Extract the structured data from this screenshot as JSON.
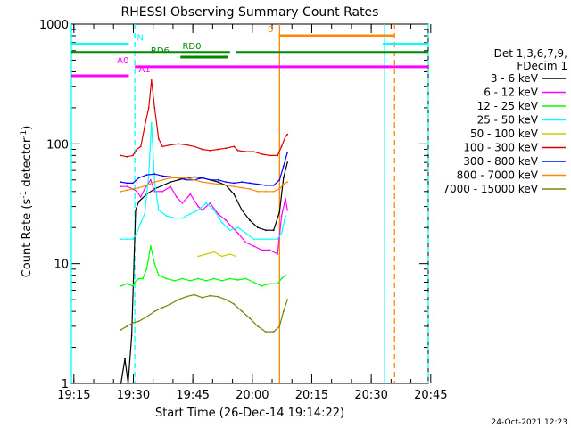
{
  "chart_data": {
    "type": "line",
    "title": "RHESSI Observing Summary Count Rates",
    "xlabel": "Start Time (26-Dec-14 19:14:22)",
    "ylabel_main": "Count Rate (s",
    "ylabel_exp1": "-1",
    "ylabel_mid": " detector",
    "ylabel_exp2": "-1",
    "ylabel_end": ")",
    "y_scale": "log",
    "ylim": [
      1,
      1000
    ],
    "xlim_min": [
      0,
      90
    ],
    "x_ticks": [
      {
        "t": 0.63,
        "label": "19:15"
      },
      {
        "t": 15.63,
        "label": "19:30"
      },
      {
        "t": 30.63,
        "label": "19:45"
      },
      {
        "t": 45.63,
        "label": "20:00"
      },
      {
        "t": 60.63,
        "label": "20:15"
      },
      {
        "t": 75.63,
        "label": "20:30"
      },
      {
        "t": 90.63,
        "label": "20:45"
      }
    ],
    "y_ticks": [
      {
        "v": 1,
        "label": "1"
      },
      {
        "v": 10,
        "label": "10"
      },
      {
        "v": 100,
        "label": "100"
      },
      {
        "v": 1000,
        "label": "1000"
      }
    ],
    "legend": {
      "placement": "right",
      "header1": "Det 1,3,6,7,9,",
      "header2": "FDecim 1",
      "entries": [
        {
          "label": "3 - 6 keV",
          "color": "#000000"
        },
        {
          "label": "6 - 12 keV",
          "color": "#ff00ff"
        },
        {
          "label": "12 - 25 keV",
          "color": "#00ff00"
        },
        {
          "label": "25 - 50 keV",
          "color": "#00ffff"
        },
        {
          "label": "50 - 100 keV",
          "color": "#cccc00"
        },
        {
          "label": "100 - 300 keV",
          "color": "#dd0000"
        },
        {
          "label": "300 - 800 keV",
          "color": "#0000ff"
        },
        {
          "label": "800 - 7000 keV",
          "color": "#ff8800"
        },
        {
          "label": "7000 - 15000 keV",
          "color": "#808000"
        }
      ]
    },
    "flag_bars": [
      {
        "label": "N",
        "color": "#00ffff",
        "value": 680,
        "segments": [
          [
            -1,
            14.5
          ],
          [
            78.5,
            91
          ]
        ],
        "label_t": 16.5
      },
      {
        "label": "S",
        "color": "#ff8800",
        "value": 800,
        "segments": [
          [
            52.5,
            81.5
          ]
        ],
        "label_t": 49.5
      },
      {
        "label": "RD0",
        "color": "#008800",
        "value": 580,
        "segments": [
          [
            -1,
            40
          ],
          [
            41.5,
            91
          ]
        ],
        "label_t": 28
      },
      {
        "label": "RD6",
        "color": "#008800",
        "value": 530,
        "segments": [
          [
            27.5,
            39.5
          ]
        ],
        "label_t": 20
      },
      {
        "label": "A0",
        "color": "#ff00ff",
        "value": 440,
        "segments": [
          [
            16,
            91
          ]
        ],
        "label_t": 11.5
      },
      {
        "label": "A1",
        "color": "#ff00ff",
        "value": 370,
        "segments": [
          [
            -1,
            14.5
          ]
        ],
        "label_t": 17
      }
    ],
    "vertical_markers": [
      {
        "t": -0.3,
        "color": "#00ffff",
        "style": "solid"
      },
      {
        "t": 16.0,
        "color": "#00ffff",
        "style": "dashed"
      },
      {
        "t": 52.5,
        "color": "#ff8800",
        "style": "solid"
      },
      {
        "t": 79.0,
        "color": "#00ffff",
        "style": "solid"
      },
      {
        "t": 81.5,
        "color": "#ff8800",
        "style": "dashed"
      },
      {
        "t": 91.0,
        "color": "#00ffff",
        "style": "dashed"
      }
    ],
    "series": [
      {
        "name": "3 - 6 keV",
        "color": "#000000",
        "points": [
          [
            12.5,
            1
          ],
          [
            13.5,
            1.6
          ],
          [
            14.3,
            1
          ],
          [
            15.2,
            2.5
          ],
          [
            16.2,
            28
          ],
          [
            17,
            33
          ],
          [
            19,
            38
          ],
          [
            21,
            42
          ],
          [
            23,
            45
          ],
          [
            25,
            48
          ],
          [
            27,
            50
          ],
          [
            29,
            52
          ],
          [
            31,
            53
          ],
          [
            33,
            52
          ],
          [
            35,
            50
          ],
          [
            37,
            48
          ],
          [
            39,
            45
          ],
          [
            41,
            38
          ],
          [
            43,
            28
          ],
          [
            45,
            23
          ],
          [
            47,
            20
          ],
          [
            49,
            19
          ],
          [
            51,
            19
          ],
          [
            52.5,
            27
          ],
          [
            53.5,
            52
          ],
          [
            54.5,
            70
          ]
        ]
      },
      {
        "name": "6 - 12 keV",
        "color": "#ff00ff",
        "points": [
          [
            12.5,
            44
          ],
          [
            14,
            44
          ],
          [
            15.5,
            42
          ],
          [
            16.5,
            40
          ],
          [
            17.5,
            36
          ],
          [
            18.5,
            42
          ],
          [
            20,
            50
          ],
          [
            21,
            40
          ],
          [
            23,
            40
          ],
          [
            25,
            44
          ],
          [
            26.5,
            36
          ],
          [
            28,
            32
          ],
          [
            30,
            38
          ],
          [
            32,
            30
          ],
          [
            33,
            28
          ],
          [
            35,
            32
          ],
          [
            37,
            26
          ],
          [
            39,
            23
          ],
          [
            40,
            21
          ],
          [
            42,
            18
          ],
          [
            44,
            15
          ],
          [
            46,
            14
          ],
          [
            48,
            13
          ],
          [
            50,
            13
          ],
          [
            52,
            12
          ],
          [
            53,
            25
          ],
          [
            54,
            35
          ],
          [
            54.5,
            28
          ]
        ]
      },
      {
        "name": "12 - 25 keV",
        "color": "#00ff00",
        "points": [
          [
            12.5,
            6.5
          ],
          [
            14,
            6.8
          ],
          [
            15.5,
            6.5
          ],
          [
            16,
            7
          ],
          [
            17,
            7.5
          ],
          [
            18,
            7.5
          ],
          [
            19,
            9
          ],
          [
            20,
            14
          ],
          [
            21,
            10
          ],
          [
            22,
            8
          ],
          [
            24,
            7.5
          ],
          [
            26,
            7.2
          ],
          [
            28,
            7.5
          ],
          [
            30,
            7.2
          ],
          [
            32,
            7.5
          ],
          [
            34,
            7.2
          ],
          [
            36,
            7.5
          ],
          [
            38,
            7.2
          ],
          [
            40,
            7.5
          ],
          [
            42,
            7.3
          ],
          [
            44,
            7.5
          ],
          [
            46,
            7
          ],
          [
            48,
            6.5
          ],
          [
            50,
            6.8
          ],
          [
            52,
            6.8
          ],
          [
            53,
            7.5
          ],
          [
            54,
            8
          ]
        ]
      },
      {
        "name": "25 - 50 keV",
        "color": "#00ffff",
        "points": [
          [
            12.5,
            16
          ],
          [
            14,
            16
          ],
          [
            15.5,
            16
          ],
          [
            16.5,
            18
          ],
          [
            17.5,
            22
          ],
          [
            18.5,
            26
          ],
          [
            19.5,
            55
          ],
          [
            20.2,
            150
          ],
          [
            21,
            48
          ],
          [
            22,
            28
          ],
          [
            24,
            25
          ],
          [
            26,
            24
          ],
          [
            28,
            24
          ],
          [
            30,
            26
          ],
          [
            32,
            28
          ],
          [
            34,
            32
          ],
          [
            36,
            28
          ],
          [
            38,
            22
          ],
          [
            40,
            19
          ],
          [
            42,
            20
          ],
          [
            44,
            18
          ],
          [
            46,
            16
          ],
          [
            48,
            16
          ],
          [
            50,
            16
          ],
          [
            52,
            16
          ],
          [
            53,
            18
          ],
          [
            54,
            25
          ]
        ]
      },
      {
        "name": "50 - 100 keV",
        "color": "#cccc00",
        "points": [
          [
            32,
            11.5
          ],
          [
            34,
            12
          ],
          [
            36,
            12.5
          ],
          [
            38,
            11.5
          ],
          [
            40,
            12
          ],
          [
            41.5,
            11.5
          ]
        ]
      },
      {
        "name": "100 - 300 keV",
        "color": "#dd0000",
        "points": [
          [
            12.5,
            80
          ],
          [
            14,
            78
          ],
          [
            15.5,
            80
          ],
          [
            16.5,
            90
          ],
          [
            17.5,
            95
          ],
          [
            18.5,
            140
          ],
          [
            19.5,
            200
          ],
          [
            20.2,
            340
          ],
          [
            21,
            200
          ],
          [
            22,
            110
          ],
          [
            23,
            95
          ],
          [
            25,
            98
          ],
          [
            27,
            100
          ],
          [
            29,
            98
          ],
          [
            31,
            95
          ],
          [
            33,
            90
          ],
          [
            35,
            88
          ],
          [
            37,
            90
          ],
          [
            39,
            92
          ],
          [
            41,
            95
          ],
          [
            42,
            88
          ],
          [
            44,
            86
          ],
          [
            46,
            86
          ],
          [
            48,
            82
          ],
          [
            50,
            80
          ],
          [
            52,
            80
          ],
          [
            53,
            95
          ],
          [
            54,
            115
          ],
          [
            54.5,
            120
          ]
        ]
      },
      {
        "name": "300 - 800 keV",
        "color": "#0000ff",
        "points": [
          [
            12.5,
            48
          ],
          [
            14,
            47
          ],
          [
            15.5,
            47
          ],
          [
            17,
            52
          ],
          [
            19,
            55
          ],
          [
            21,
            56
          ],
          [
            23,
            54
          ],
          [
            25,
            53
          ],
          [
            27,
            52
          ],
          [
            29,
            50
          ],
          [
            31,
            50
          ],
          [
            33,
            52
          ],
          [
            35,
            50
          ],
          [
            37,
            50
          ],
          [
            39,
            48
          ],
          [
            41,
            47
          ],
          [
            43,
            48
          ],
          [
            45,
            47
          ],
          [
            47,
            46
          ],
          [
            49,
            45
          ],
          [
            51,
            45
          ],
          [
            52.5,
            50
          ],
          [
            53.5,
            65
          ],
          [
            54.5,
            85
          ]
        ]
      },
      {
        "name": "800 - 7000 keV",
        "color": "#ff8800",
        "points": [
          [
            12.5,
            40
          ],
          [
            14,
            41
          ],
          [
            15.5,
            42
          ],
          [
            17,
            43
          ],
          [
            19,
            45
          ],
          [
            21,
            48
          ],
          [
            23,
            50
          ],
          [
            25,
            52
          ],
          [
            27,
            52
          ],
          [
            29,
            52
          ],
          [
            31,
            50
          ],
          [
            33,
            48
          ],
          [
            35,
            47
          ],
          [
            37,
            46
          ],
          [
            39,
            45
          ],
          [
            41,
            44
          ],
          [
            43,
            43
          ],
          [
            45,
            42
          ],
          [
            47,
            40
          ],
          [
            49,
            40
          ],
          [
            51,
            40
          ],
          [
            52.5,
            42
          ],
          [
            53.5,
            46
          ],
          [
            54.5,
            48
          ]
        ]
      },
      {
        "name": "7000 - 15000 keV",
        "color": "#808000",
        "points": [
          [
            12.5,
            2.8
          ],
          [
            14,
            3
          ],
          [
            15.5,
            3.2
          ],
          [
            17,
            3.3
          ],
          [
            19,
            3.6
          ],
          [
            21,
            4
          ],
          [
            23,
            4.3
          ],
          [
            25,
            4.6
          ],
          [
            27,
            5
          ],
          [
            29,
            5.3
          ],
          [
            31,
            5.5
          ],
          [
            33,
            5.2
          ],
          [
            35,
            5.4
          ],
          [
            37,
            5.3
          ],
          [
            39,
            5
          ],
          [
            41,
            4.6
          ],
          [
            43,
            4
          ],
          [
            45,
            3.5
          ],
          [
            47,
            3
          ],
          [
            49,
            2.7
          ],
          [
            51,
            2.7
          ],
          [
            52.5,
            3
          ],
          [
            53.5,
            4
          ],
          [
            54.5,
            5
          ]
        ]
      }
    ],
    "footer_date": "24-Oct-2021 12:23"
  }
}
